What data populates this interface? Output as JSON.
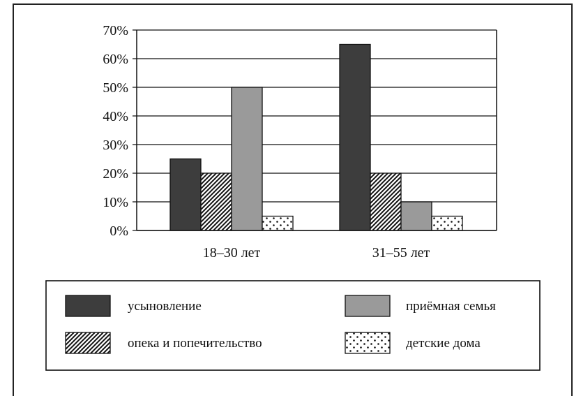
{
  "chart_data": {
    "type": "bar",
    "categories": [
      "18–30 лет",
      "31–55 лет"
    ],
    "series": [
      {
        "name": "усыновление",
        "values": [
          25,
          65
        ],
        "fill": "#3d3d3d",
        "pattern": "solid"
      },
      {
        "name": "опека и попечительство",
        "values": [
          20,
          20
        ],
        "fill": "#ffffff",
        "pattern": "hatch"
      },
      {
        "name": "приёмная семья",
        "values": [
          50,
          10
        ],
        "fill": "#9a9a9a",
        "pattern": "solid"
      },
      {
        "name": "детские дома",
        "values": [
          5,
          5
        ],
        "fill": "#ffffff",
        "pattern": "dots"
      }
    ],
    "yticks": [
      "0%",
      "10%",
      "20%",
      "30%",
      "40%",
      "50%",
      "60%",
      "70%"
    ],
    "ylim": [
      0,
      70
    ],
    "grid": true,
    "legend_position": "bottom"
  }
}
